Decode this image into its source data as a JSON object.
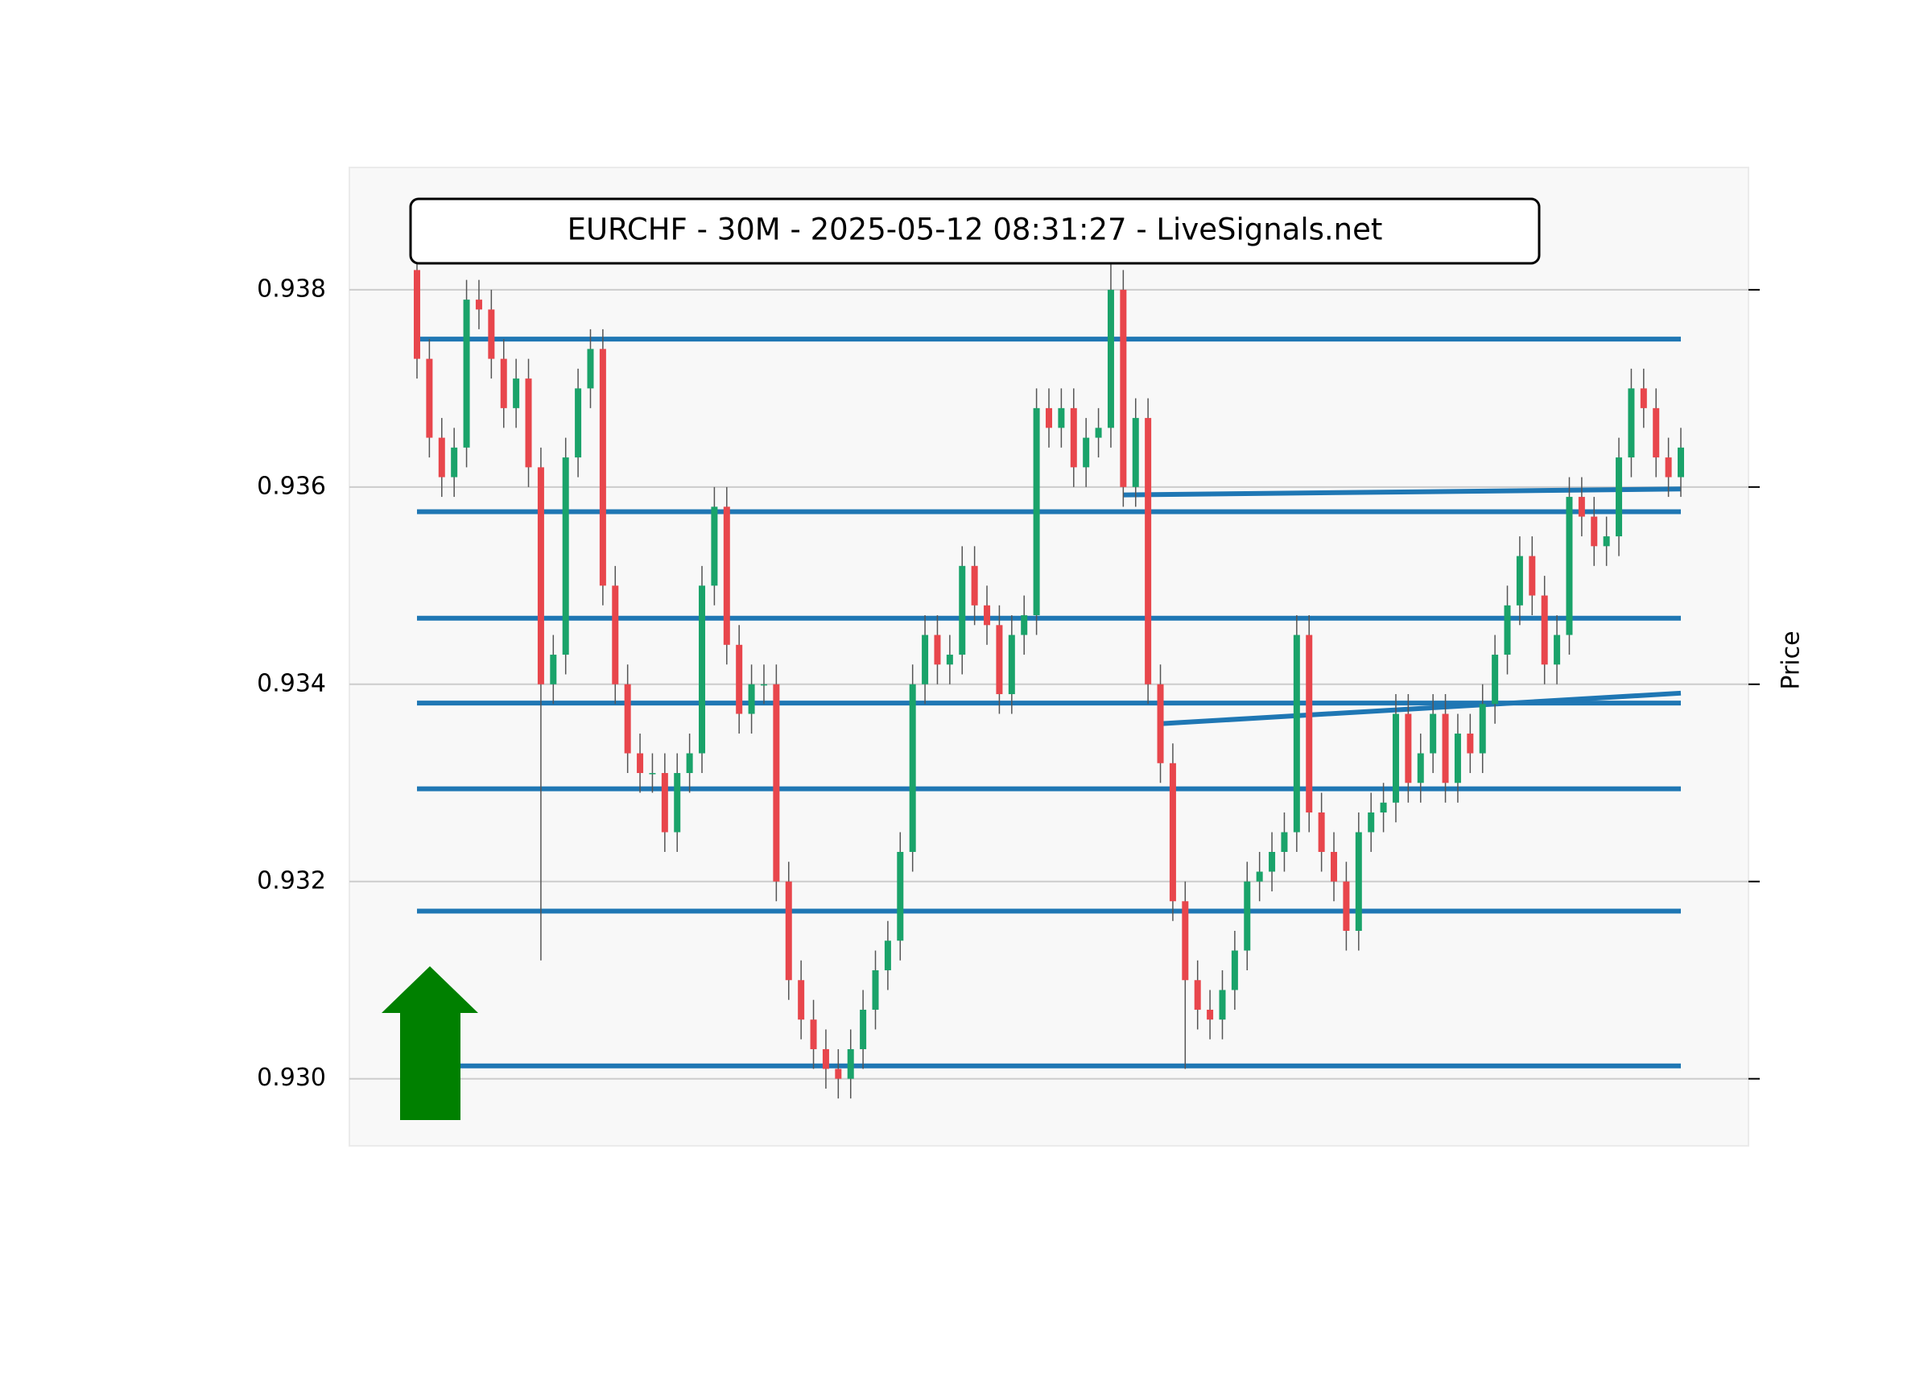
{
  "chart_data": {
    "type": "candlestick",
    "title": "EURCHF - 30M - 2025-05-12 08:31:27 - LiveSignals.net",
    "y_label": "Price",
    "up_color": "#1aa36a",
    "down_color": "#e8464c",
    "level_color": "#1f77b4",
    "grid": true,
    "ylim": [
      0.92932,
      0.93924
    ],
    "yticks": [
      {
        "value": 0.93,
        "label": "0.930"
      },
      0.932,
      0.934,
      0.936,
      0.938
    ],
    "open": [
      0.9382,
      0.9373,
      0.9365,
      0.9361,
      0.9364,
      0.9379,
      0.9378,
      0.9373,
      0.9368,
      0.9371,
      0.9362,
      0.934,
      0.9343,
      0.9363,
      0.937,
      0.9374,
      0.935,
      0.934,
      0.9333,
      0.9331,
      0.9331,
      0.9325,
      0.9331,
      0.9333,
      0.935,
      0.9358,
      0.9344,
      0.9337,
      0.934,
      0.934,
      0.932,
      0.931,
      0.9306,
      0.9303,
      0.9301,
      0.93,
      0.9303,
      0.9307,
      0.9311,
      0.9314,
      0.9323,
      0.934,
      0.9345,
      0.9342,
      0.9343,
      0.9352,
      0.9348,
      0.9346,
      0.9339,
      0.9345,
      0.9347,
      0.9368,
      0.9366,
      0.9368,
      0.9362,
      0.9365,
      0.9366,
      0.938,
      0.936,
      0.9367,
      0.934,
      0.9332,
      0.9318,
      0.931,
      0.9307,
      0.9306,
      0.9309,
      0.9313,
      0.932,
      0.9321,
      0.9323,
      0.9325,
      0.9345,
      0.9327,
      0.9323,
      0.932,
      0.9315,
      0.9325,
      0.9327,
      0.9328,
      0.9337,
      0.933,
      0.9333,
      0.9337,
      0.933,
      0.9335,
      0.9333,
      0.9338,
      0.9343,
      0.9348,
      0.9353,
      0.9349,
      0.9342,
      0.9345,
      0.9359,
      0.9357,
      0.9354,
      0.9355,
      0.9363,
      0.937,
      0.9368,
      0.9363,
      0.9361
    ],
    "high": [
      0.9385,
      0.9375,
      0.9367,
      0.9366,
      0.9381,
      0.9381,
      0.938,
      0.9375,
      0.9373,
      0.9373,
      0.9364,
      0.9345,
      0.9365,
      0.9372,
      0.9376,
      0.9376,
      0.9352,
      0.9342,
      0.9335,
      0.9333,
      0.9333,
      0.9333,
      0.9335,
      0.9352,
      0.936,
      0.936,
      0.9346,
      0.9342,
      0.9342,
      0.9342,
      0.9322,
      0.9312,
      0.9308,
      0.9305,
      0.9303,
      0.9305,
      0.9309,
      0.9313,
      0.9316,
      0.9325,
      0.9342,
      0.9347,
      0.9347,
      0.9345,
      0.9354,
      0.9354,
      0.935,
      0.9348,
      0.9347,
      0.9349,
      0.937,
      0.937,
      0.937,
      0.937,
      0.9367,
      0.9368,
      0.9385,
      0.9382,
      0.9369,
      0.9369,
      0.9342,
      0.9334,
      0.932,
      0.9312,
      0.9309,
      0.9311,
      0.9315,
      0.9322,
      0.9323,
      0.9325,
      0.9327,
      0.9347,
      0.9347,
      0.9329,
      0.9325,
      0.9322,
      0.9327,
      0.9329,
      0.933,
      0.9339,
      0.9339,
      0.9335,
      0.9339,
      0.9339,
      0.9337,
      0.9337,
      0.934,
      0.9345,
      0.935,
      0.9355,
      0.9355,
      0.9351,
      0.9347,
      0.9361,
      0.9361,
      0.9359,
      0.9357,
      0.9365,
      0.9372,
      0.9372,
      0.937,
      0.9365,
      0.9366
    ],
    "low": [
      0.9371,
      0.9363,
      0.9359,
      0.9359,
      0.9362,
      0.9376,
      0.9371,
      0.9366,
      0.9366,
      0.936,
      0.9312,
      0.9338,
      0.9341,
      0.9361,
      0.9368,
      0.9348,
      0.9338,
      0.9331,
      0.9329,
      0.9329,
      0.9323,
      0.9323,
      0.9329,
      0.9331,
      0.9348,
      0.9342,
      0.9335,
      0.9335,
      0.9338,
      0.9318,
      0.9308,
      0.9304,
      0.9301,
      0.9299,
      0.9298,
      0.9298,
      0.9301,
      0.9305,
      0.9309,
      0.9312,
      0.9321,
      0.9338,
      0.934,
      0.934,
      0.9341,
      0.9346,
      0.9344,
      0.9337,
      0.9337,
      0.9343,
      0.9345,
      0.9364,
      0.9364,
      0.936,
      0.936,
      0.9363,
      0.9364,
      0.9358,
      0.9358,
      0.9338,
      0.933,
      0.9316,
      0.9301,
      0.9305,
      0.9304,
      0.9304,
      0.9307,
      0.9311,
      0.9318,
      0.9319,
      0.9321,
      0.9323,
      0.9325,
      0.9321,
      0.9318,
      0.9313,
      0.9313,
      0.9323,
      0.9325,
      0.9326,
      0.9328,
      0.9328,
      0.9331,
      0.9328,
      0.9328,
      0.9331,
      0.9331,
      0.9336,
      0.9341,
      0.9346,
      0.9347,
      0.934,
      0.934,
      0.9343,
      0.9355,
      0.9352,
      0.9352,
      0.9353,
      0.9361,
      0.9366,
      0.9361,
      0.9359,
      0.9359
    ],
    "close": [
      0.9373,
      0.9365,
      0.9361,
      0.9364,
      0.9379,
      0.9378,
      0.9373,
      0.9368,
      0.9371,
      0.9362,
      0.934,
      0.9343,
      0.9363,
      0.937,
      0.9374,
      0.935,
      0.934,
      0.9333,
      0.9331,
      0.9331,
      0.9325,
      0.9331,
      0.9333,
      0.935,
      0.9358,
      0.9344,
      0.9337,
      0.934,
      0.934,
      0.932,
      0.931,
      0.9306,
      0.9303,
      0.9301,
      0.93,
      0.9303,
      0.9307,
      0.9311,
      0.9314,
      0.9323,
      0.934,
      0.9345,
      0.9342,
      0.9343,
      0.9352,
      0.9348,
      0.9346,
      0.9339,
      0.9345,
      0.9347,
      0.9368,
      0.9366,
      0.9368,
      0.9362,
      0.9365,
      0.9366,
      0.938,
      0.936,
      0.9367,
      0.934,
      0.9332,
      0.9318,
      0.931,
      0.9307,
      0.9306,
      0.9309,
      0.9313,
      0.932,
      0.9321,
      0.9323,
      0.9325,
      0.9345,
      0.9327,
      0.9323,
      0.932,
      0.9315,
      0.9325,
      0.9327,
      0.9328,
      0.9337,
      0.933,
      0.9333,
      0.9337,
      0.933,
      0.9335,
      0.9333,
      0.9338,
      0.9343,
      0.9348,
      0.9353,
      0.9349,
      0.9342,
      0.9345,
      0.9359,
      0.9357,
      0.9354,
      0.9355,
      0.9363,
      0.937,
      0.9368,
      0.9363,
      0.9361,
      0.9364
    ],
    "levels": [
      {
        "x": [
          0,
          102
        ],
        "y": [
          0.9375,
          0.9375
        ]
      },
      {
        "x": [
          0,
          102
        ],
        "y": [
          0.93575,
          0.93575
        ]
      },
      {
        "x": [
          0,
          102
        ],
        "y": [
          0.93467,
          0.93467
        ]
      },
      {
        "x": [
          0,
          102
        ],
        "y": [
          0.93381,
          0.93381
        ]
      },
      {
        "x": [
          0,
          102
        ],
        "y": [
          0.93294,
          0.93294
        ]
      },
      {
        "x": [
          0,
          102
        ],
        "y": [
          0.9317,
          0.9317
        ]
      },
      {
        "x": [
          3,
          102
        ],
        "y": [
          0.93013,
          0.93013
        ]
      },
      {
        "x": [
          57,
          102
        ],
        "y": [
          0.93592,
          0.93598
        ]
      },
      {
        "x": [
          60,
          102
        ],
        "y": [
          0.9336,
          0.93391
        ]
      }
    ]
  }
}
